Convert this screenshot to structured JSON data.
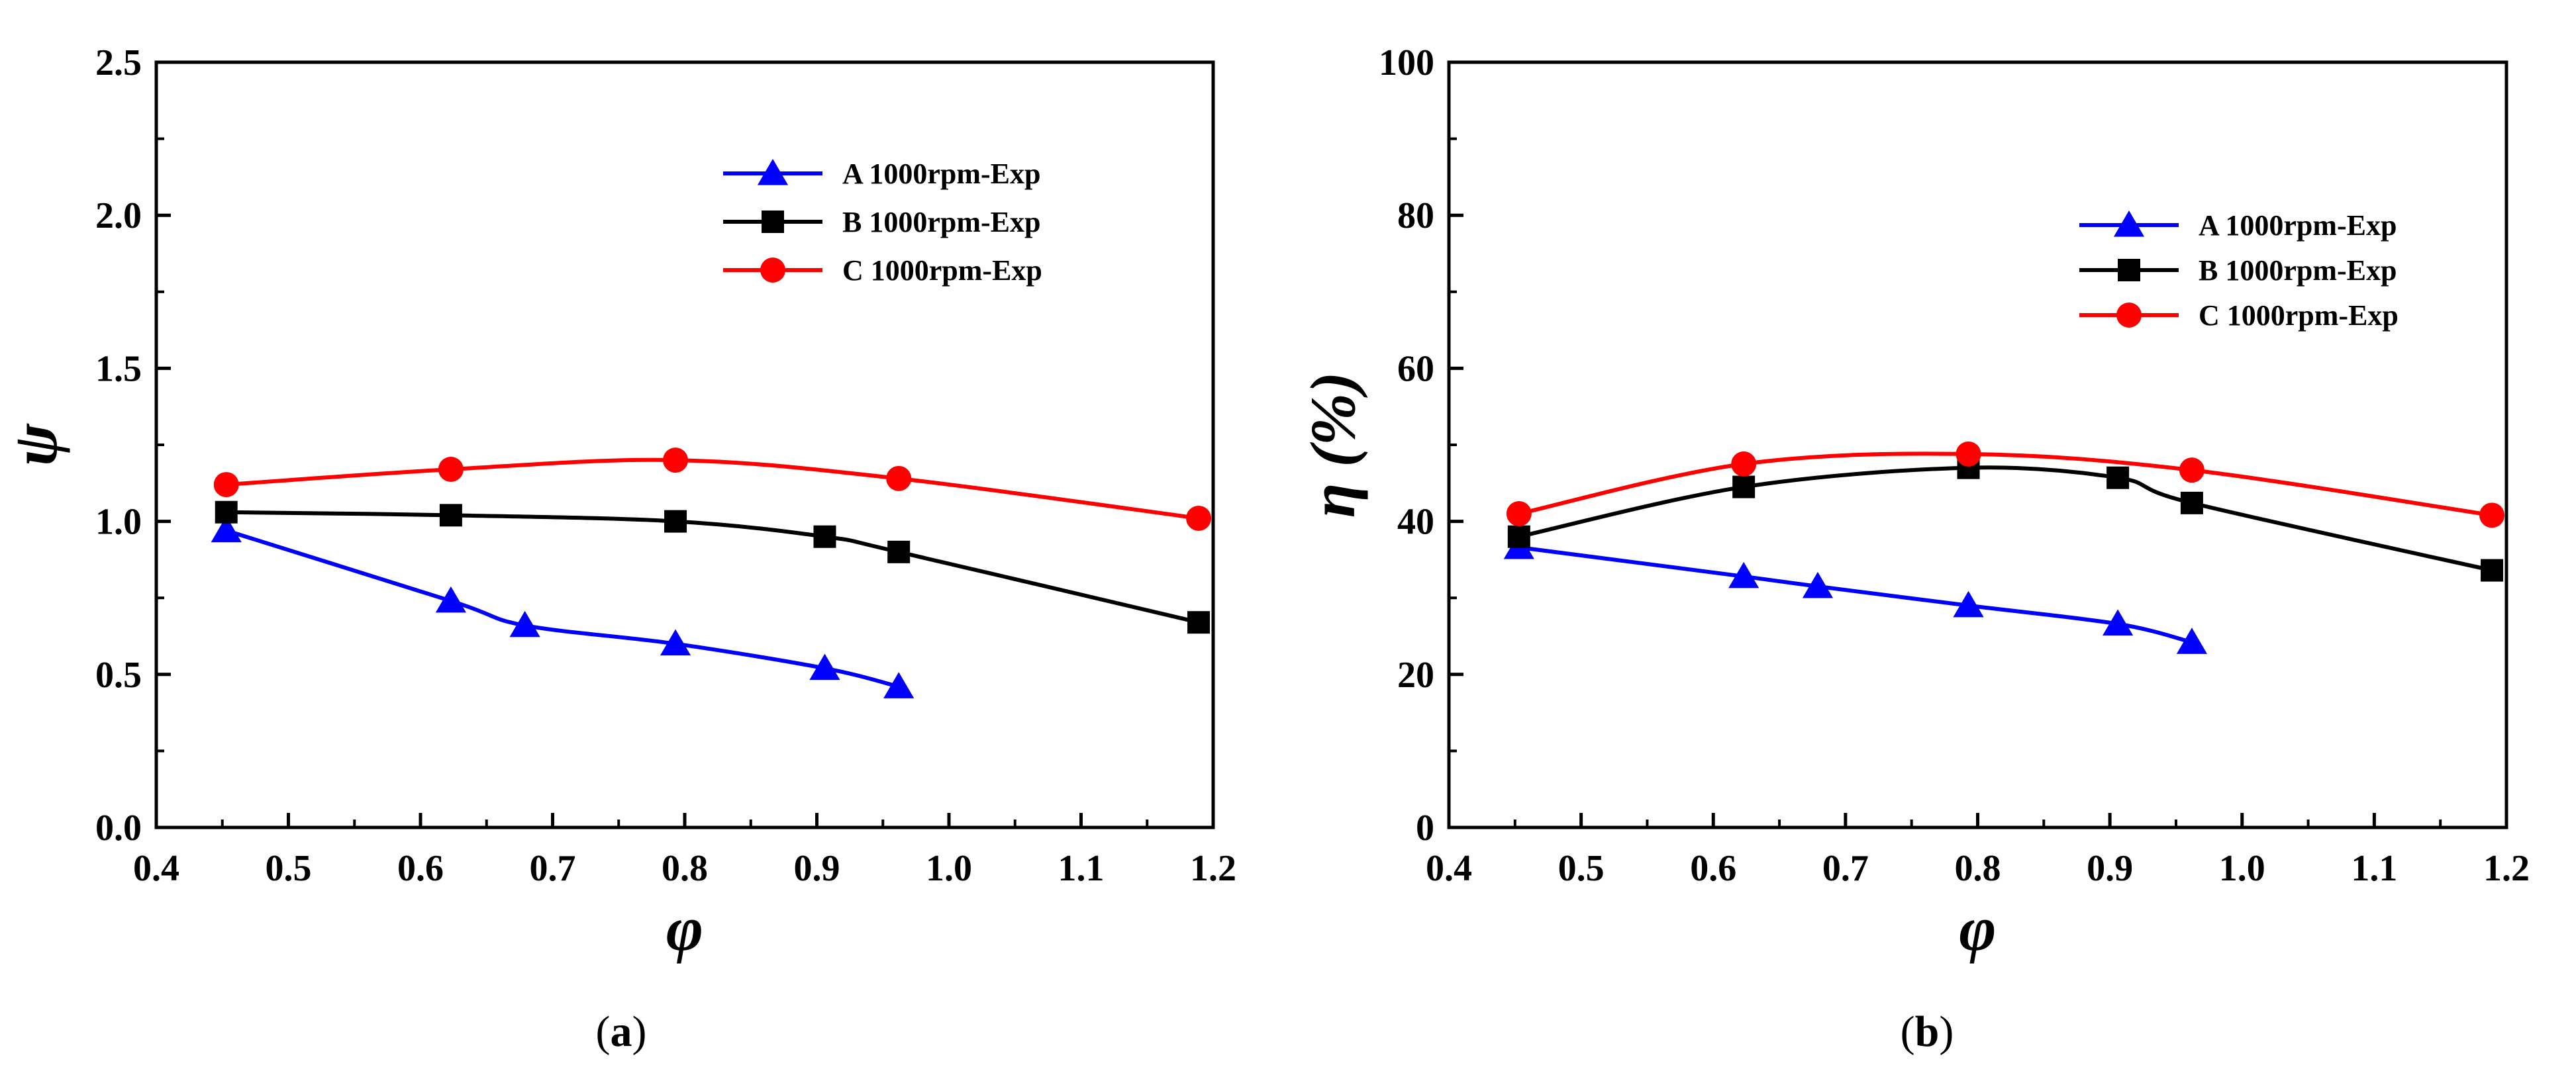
{
  "chart_data": [
    {
      "type": "line",
      "panel": "a",
      "caption_left": "(",
      "caption_letter": "a",
      "caption_right": ")",
      "xlabel": "φ",
      "ylabel": "ψ",
      "xlim": [
        0.4,
        1.2
      ],
      "ylim": [
        0.0,
        2.5
      ],
      "xticks": [
        "0.4",
        "0.5",
        "0.6",
        "0.7",
        "0.8",
        "0.9",
        "1.0",
        "1.1",
        "1.2"
      ],
      "yticks": [
        "0.0",
        "0.5",
        "1.0",
        "1.5",
        "2.0",
        "2.5"
      ],
      "legend_position": "top-right",
      "series": [
        {
          "name": "A 1000rpm-Exp",
          "color": "#0000ff",
          "marker": "triangle",
          "x": [
            0.453,
            0.623,
            0.679,
            0.793,
            0.906,
            0.962
          ],
          "y": [
            0.97,
            0.74,
            0.66,
            0.6,
            0.52,
            0.46
          ]
        },
        {
          "name": "B 1000rpm-Exp",
          "color": "#000000",
          "marker": "square",
          "x": [
            0.453,
            0.623,
            0.793,
            0.906,
            0.962,
            1.189
          ],
          "y": [
            1.03,
            1.02,
            1.0,
            0.95,
            0.9,
            0.67
          ]
        },
        {
          "name": "C 1000rpm-Exp",
          "color": "#ff0000",
          "marker": "circle",
          "x": [
            0.453,
            0.623,
            0.793,
            0.962,
            1.189
          ],
          "y": [
            1.12,
            1.17,
            1.2,
            1.14,
            1.01
          ]
        }
      ]
    },
    {
      "type": "line",
      "panel": "b",
      "caption_left": "(",
      "caption_letter": "b",
      "caption_right": ")",
      "xlabel": "φ",
      "ylabel": "η (%)",
      "xlim": [
        0.4,
        1.2
      ],
      "ylim": [
        0,
        100
      ],
      "xticks": [
        "0.4",
        "0.5",
        "0.6",
        "0.7",
        "0.8",
        "0.9",
        "1.0",
        "1.1",
        "1.2"
      ],
      "yticks": [
        "0",
        "20",
        "40",
        "60",
        "80",
        "100"
      ],
      "legend_position": "top-right",
      "series": [
        {
          "name": "A 1000rpm-Exp",
          "color": "#0000ff",
          "marker": "triangle",
          "x": [
            0.453,
            0.623,
            0.679,
            0.793,
            0.906,
            0.962
          ],
          "y": [
            36.6,
            32.8,
            31.5,
            29.0,
            26.6,
            24.2
          ]
        },
        {
          "name": "B 1000rpm-Exp",
          "color": "#000000",
          "marker": "square",
          "x": [
            0.453,
            0.623,
            0.793,
            0.906,
            0.962,
            1.189
          ],
          "y": [
            38.0,
            44.5,
            47.0,
            45.7,
            42.4,
            33.6
          ]
        },
        {
          "name": "C 1000rpm-Exp",
          "color": "#ff0000",
          "marker": "circle",
          "x": [
            0.453,
            0.623,
            0.793,
            0.962,
            1.189
          ],
          "y": [
            41.0,
            47.5,
            48.8,
            46.7,
            40.8
          ]
        }
      ]
    }
  ]
}
